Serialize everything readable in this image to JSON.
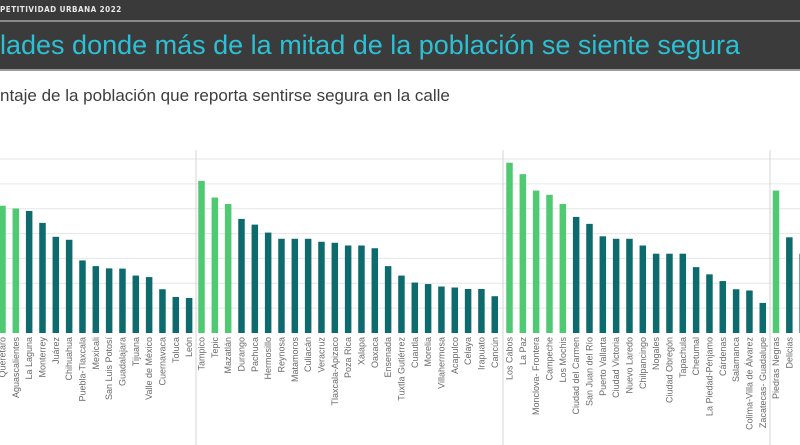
{
  "header": {
    "brand": "PETITIVIDAD URBANA 2022",
    "title": "lades donde más de la mitad de la población se siente segura",
    "subtitle": "ntaje de la población que reporta sentirse segura en la calle"
  },
  "colors": {
    "above_half": "#4fca72",
    "below_half": "#0d6a6d",
    "header_bg": "#3b3b3b",
    "title": "#2cc0d4"
  },
  "chart_data": {
    "type": "bar",
    "title": "",
    "xlabel": "",
    "ylabel": "",
    "ylim": [
      0,
      70
    ],
    "grid": true,
    "y_tick_labels_visible": false,
    "groups": [
      {
        "categories": [
          "Querétaro",
          "Aguascalientes",
          "La Laguna",
          "Monterrey",
          "Juárez",
          "Chihuahua",
          "Puebla-Tlaxcala",
          "Mexicali",
          "San Luis Potosí",
          "Guadalajara",
          "Tijuana",
          "Valle de México",
          "Cuernavaca",
          "Toluca",
          "León"
        ],
        "values": [
          51.2,
          50.1,
          49.1,
          44.3,
          38.7,
          37.5,
          29.2,
          26.9,
          26.0,
          25.9,
          23.1,
          22.5,
          17.6,
          14.5,
          14.1
        ]
      },
      {
        "categories": [
          "Tampico",
          "Tepic",
          "Mazatlán",
          "Durango",
          "Pachuca",
          "Hermosillo",
          "Reynosa",
          "Matamoros",
          "Culiacán",
          "Veracruz",
          "Tlaxcala-Apizaco",
          "Poza Rica",
          "Xalapa",
          "Oaxaca",
          "Ensenada",
          "Tuxtla Gutiérrez",
          "Cuautla",
          "Morelia",
          "Villahermosa",
          "Acapulco",
          "Celaya",
          "Irapuato",
          "Cancún"
        ],
        "values": [
          61.2,
          54.5,
          51.9,
          45.9,
          43.6,
          40.4,
          37.9,
          37.9,
          37.9,
          36.7,
          36.3,
          35.2,
          35.2,
          34.1,
          26.9,
          23.1,
          20.3,
          19.7,
          18.7,
          18.3,
          17.7,
          17.7,
          14.8
        ]
      },
      {
        "categories": [
          "Los Cabos",
          "La Paz",
          "Monclova- Frontera",
          "Campeche",
          "Los Mochis",
          "Ciudad del Carmen",
          "San Juan del Río",
          "Puerto Vallarta",
          "Ciudad Victoria",
          "Nuevo Laredo",
          "Chilpancingo",
          "Nogales",
          "Ciudad Obregón",
          "Tapachula",
          "Chetumal",
          "La Piedad-Pénjamo",
          "Cárdenas",
          "Salamanca",
          "Colima-Villa de Álvarez",
          "Zacatecas- Guadalupe"
        ],
        "values": [
          68.5,
          63.9,
          57.3,
          55.6,
          51.9,
          46.7,
          43.9,
          38.9,
          37.9,
          37.9,
          35.2,
          31.9,
          31.9,
          31.9,
          26.5,
          23.6,
          20.9,
          17.6,
          17.1,
          12.1
        ]
      },
      {
        "categories": [
          "Piedras Negras",
          "Delicias",
          ""
        ],
        "values": [
          57.3,
          38.5,
          31.9
        ]
      }
    ]
  }
}
